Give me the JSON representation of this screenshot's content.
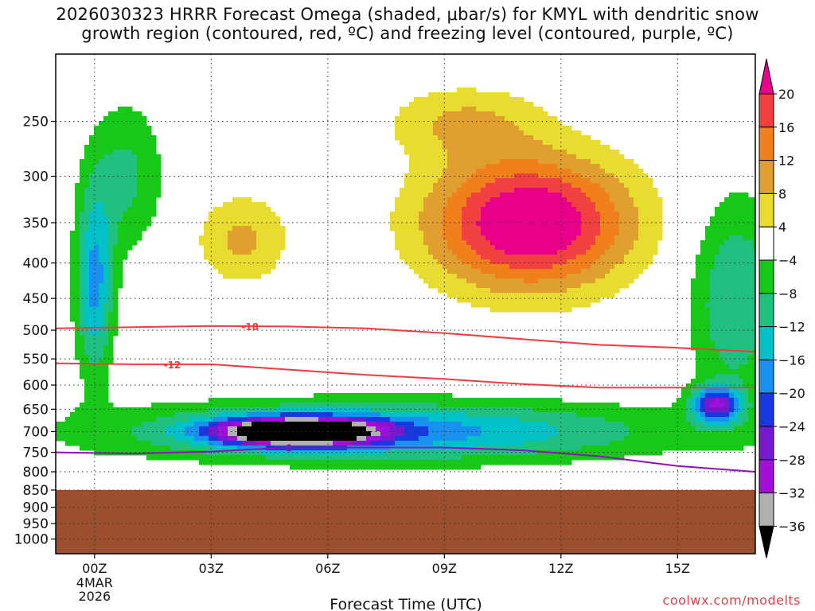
{
  "title_line1": "2026030323 HRRR Forecast Omega (shaded, μbar/s) for KMYL with dendritic snow",
  "title_line2": "growth region (contoured, red, ºC) and freezing level (contoured, purple, ºC)",
  "credit": "coolwx.com/modelts",
  "chart_data": {
    "type": "heatmap",
    "xlabel": "Forecast Time (UTC)",
    "ylabel": "",
    "x_tick_labels": [
      "00Z",
      "03Z",
      "06Z",
      "09Z",
      "12Z",
      "15Z"
    ],
    "x_tick_hours": [
      0,
      3,
      6,
      9,
      12,
      15
    ],
    "x_sub_labels": [
      "4MAR",
      "2026"
    ],
    "xlim_hours": [
      -1,
      17
    ],
    "y_tick_labels": [
      "250",
      "300",
      "350",
      "400",
      "450",
      "500",
      "550",
      "600",
      "650",
      "700",
      "750",
      "800",
      "850",
      "900",
      "950",
      "1000"
    ],
    "y_ticks_mb": [
      250,
      300,
      350,
      400,
      450,
      500,
      550,
      600,
      650,
      700,
      750,
      800,
      850,
      900,
      950,
      1000
    ],
    "ylim_mb": [
      200,
      1050
    ],
    "y_scale": "log",
    "grid": true,
    "ground_level_mb": 850,
    "ground_color": "#9c4f2c",
    "colorbar": {
      "tick_labels": [
        "20",
        "16",
        "12",
        "8",
        "4",
        "−4",
        "−8",
        "−12",
        "−16",
        "−20",
        "−24",
        "−28",
        "−32",
        "−36"
      ],
      "bins": [
        {
          "lo": 20,
          "hi": 99,
          "color": "#e8008a"
        },
        {
          "lo": 16,
          "hi": 20,
          "color": "#f04040"
        },
        {
          "lo": 12,
          "hi": 16,
          "color": "#f0801c"
        },
        {
          "lo": 8,
          "hi": 12,
          "color": "#e0a030"
        },
        {
          "lo": 4,
          "hi": 8,
          "color": "#e8dc30"
        },
        {
          "lo": -4,
          "hi": 4,
          "color": "#ffffff"
        },
        {
          "lo": -8,
          "hi": -4,
          "color": "#18c818"
        },
        {
          "lo": -12,
          "hi": -8,
          "color": "#20c080"
        },
        {
          "lo": -16,
          "hi": -12,
          "color": "#00c0c8"
        },
        {
          "lo": -20,
          "hi": -16,
          "color": "#1890f0"
        },
        {
          "lo": -24,
          "hi": -20,
          "color": "#1838e0"
        },
        {
          "lo": -28,
          "hi": -24,
          "color": "#7818d0"
        },
        {
          "lo": -32,
          "hi": -28,
          "color": "#a010d8"
        },
        {
          "lo": -36,
          "hi": -32,
          "color": "#b0b0b0"
        },
        {
          "lo": -99,
          "hi": -36,
          "color": "#000000"
        }
      ]
    },
    "contours": [
      {
        "label": "-18",
        "color": "#f03c3c",
        "hours": [
          -1,
          1,
          3,
          5,
          7,
          9,
          11,
          13,
          15,
          17
        ],
        "mb": [
          497,
          495,
          493,
          494,
          497,
          505,
          515,
          525,
          530,
          537
        ]
      },
      {
        "label": "-12",
        "color": "#f03c3c",
        "hours": [
          -1,
          1,
          3,
          5,
          7,
          9,
          11,
          13,
          15,
          17
        ],
        "mb": [
          558,
          560,
          560,
          570,
          580,
          588,
          598,
          605,
          605,
          605
        ]
      },
      {
        "label": "0",
        "color": "#9010c0",
        "hours": [
          -1,
          1,
          3,
          5,
          7,
          9,
          11,
          13,
          15,
          17
        ],
        "mb": [
          750,
          753,
          748,
          738,
          738,
          738,
          745,
          760,
          785,
          800
        ]
      }
    ],
    "features": [
      {
        "name": "ascent-max-12z",
        "hour": 11.2,
        "mb": 350,
        "dh": 2.6,
        "fmb": 0.22,
        "value": 26
      },
      {
        "name": "ascent-secondary-04z",
        "hour": 3.8,
        "mb": 370,
        "dh": 1.2,
        "fmb": 0.15,
        "value": 9
      },
      {
        "name": "ascent-upper-09z",
        "hour": 9.5,
        "mb": 250,
        "dh": 2.0,
        "fmb": 0.12,
        "value": 8
      },
      {
        "name": "subsidence-min-05z",
        "hour": 5.2,
        "mb": 700,
        "dh": 2.0,
        "fmb": 0.045,
        "value": -44
      },
      {
        "name": "subsidence-low-level",
        "hour": 7.5,
        "mb": 700,
        "dh": 7.0,
        "fmb": 0.1,
        "value": -18
      },
      {
        "name": "subsidence-column-00z",
        "hour": 0.0,
        "mb": 430,
        "dh": 0.5,
        "fmb": 0.3,
        "value": -17
      },
      {
        "name": "subsidence-upper-00z",
        "hour": 0.8,
        "mb": 300,
        "dh": 1.0,
        "fmb": 0.25,
        "value": -9
      },
      {
        "name": "subsidence-16z",
        "hour": 16.0,
        "mb": 640,
        "dh": 0.6,
        "fmb": 0.06,
        "value": -24
      },
      {
        "name": "subsidence-east",
        "hour": 16.5,
        "mb": 450,
        "dh": 1.2,
        "fmb": 0.35,
        "value": -12
      },
      {
        "name": "ascent-surface-00z",
        "hour": 0.5,
        "mb": 820,
        "dh": 0.4,
        "fmb": 0.02,
        "value": 5
      },
      {
        "name": "ascent-surface-17z",
        "hour": 17.0,
        "mb": 820,
        "dh": 0.4,
        "fmb": 0.02,
        "value": 5
      }
    ]
  }
}
